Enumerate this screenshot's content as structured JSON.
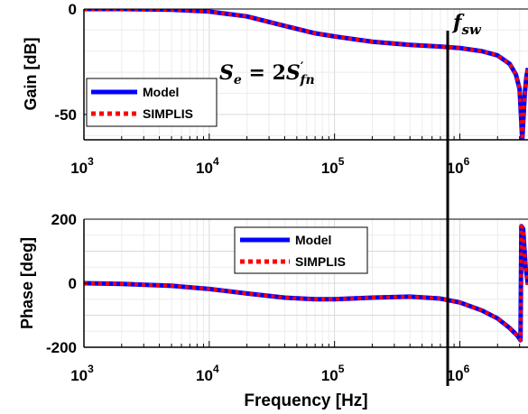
{
  "chart_data": [
    {
      "type": "line",
      "xscale": "log",
      "xlim": [
        1000,
        3500000
      ],
      "ylim": [
        -62,
        0
      ],
      "ylabel": "Gain [dB]",
      "xlabel": "",
      "xticks": [
        {
          "base": "10",
          "exp": "3"
        },
        {
          "base": "10",
          "exp": "4"
        },
        {
          "base": "10",
          "exp": "5"
        },
        {
          "base": "10",
          "exp": "6"
        }
      ],
      "yticks": [
        {
          "value": 0,
          "label": "0"
        },
        {
          "value": -50,
          "label": "-50"
        }
      ],
      "grid": "minor+major",
      "legend": {
        "placement": "bottom-left",
        "entries": [
          "Model",
          "SIMPLIS"
        ]
      },
      "series": [
        {
          "name": "Model",
          "color": "#0000ff",
          "style": "solid",
          "x": [
            1000,
            2000,
            5000,
            10000,
            20000,
            40000,
            70000,
            100000,
            200000,
            400000,
            700000,
            1000000,
            1500000,
            2000000,
            2500000,
            2800000,
            3000000,
            3150000,
            3300000,
            3400000,
            3500000
          ],
          "y": [
            0,
            0,
            -0.3,
            -1.2,
            -3.5,
            -8,
            -11.5,
            -13,
            -15.5,
            -17,
            -17.8,
            -18.5,
            -20,
            -22,
            -26,
            -31,
            -38,
            -62,
            -40,
            -32,
            -28
          ]
        },
        {
          "name": "SIMPLIS",
          "color": "#ff0000",
          "style": "dotted",
          "x": [
            1000,
            2000,
            5000,
            10000,
            20000,
            40000,
            70000,
            100000,
            200000,
            400000,
            700000,
            1000000,
            1500000,
            2000000,
            2500000,
            2800000,
            3000000,
            3150000,
            3300000,
            3400000,
            3500000
          ],
          "y": [
            0,
            0,
            -0.3,
            -1.2,
            -3.5,
            -8,
            -11.5,
            -13,
            -15.5,
            -17,
            -17.8,
            -18.5,
            -20,
            -22,
            -26,
            -31,
            -38,
            -62,
            -40,
            -32,
            -28
          ]
        }
      ]
    },
    {
      "type": "line",
      "xscale": "log",
      "xlim": [
        1000,
        3500000
      ],
      "ylim": [
        -200,
        200
      ],
      "ylabel": "Phase [deg]",
      "xlabel": "Frequency [Hz]",
      "xticks": [
        {
          "base": "10",
          "exp": "3"
        },
        {
          "base": "10",
          "exp": "4"
        },
        {
          "base": "10",
          "exp": "5"
        },
        {
          "base": "10",
          "exp": "6"
        }
      ],
      "yticks": [
        {
          "value": 200,
          "label": "200"
        },
        {
          "value": 0,
          "label": "0"
        },
        {
          "value": -200,
          "label": "-200"
        }
      ],
      "grid": "minor+major",
      "legend": {
        "placement": "top-center",
        "entries": [
          "Model",
          "SIMPLIS"
        ]
      },
      "series": [
        {
          "name": "Model",
          "color": "#0000ff",
          "style": "solid",
          "x": [
            1000,
            2000,
            5000,
            10000,
            20000,
            40000,
            70000,
            100000,
            200000,
            400000,
            700000,
            1000000,
            1500000,
            2000000,
            2500000,
            2900000,
            3050000,
            3100000,
            3200000,
            3350000,
            3500000
          ],
          "y": [
            0,
            -2,
            -8,
            -18,
            -32,
            -45,
            -50,
            -50,
            -45,
            -42,
            -48,
            -60,
            -85,
            -110,
            -140,
            -165,
            -178,
            178,
            170,
            50,
            -5
          ]
        },
        {
          "name": "SIMPLIS",
          "color": "#ff0000",
          "style": "dotted",
          "x": [
            1000,
            2000,
            5000,
            10000,
            20000,
            40000,
            70000,
            100000,
            200000,
            400000,
            700000,
            1000000,
            1500000,
            2000000,
            2500000,
            2900000,
            3050000,
            3100000,
            3200000,
            3350000,
            3500000
          ],
          "y": [
            0,
            -2,
            -8,
            -18,
            -32,
            -45,
            -50,
            -50,
            -45,
            -42,
            -48,
            -60,
            -85,
            -110,
            -140,
            -165,
            -178,
            178,
            170,
            50,
            -5
          ]
        }
      ]
    }
  ],
  "annotations": {
    "fsw_label": "f",
    "fsw_sub": "sw",
    "fsw_x": 800000,
    "equation": {
      "lhs": "S",
      "lhs_sub": "e",
      "mid": " = 2",
      "rhs": "S",
      "rhs_sup": "′",
      "rhs_sub": "fn"
    }
  }
}
